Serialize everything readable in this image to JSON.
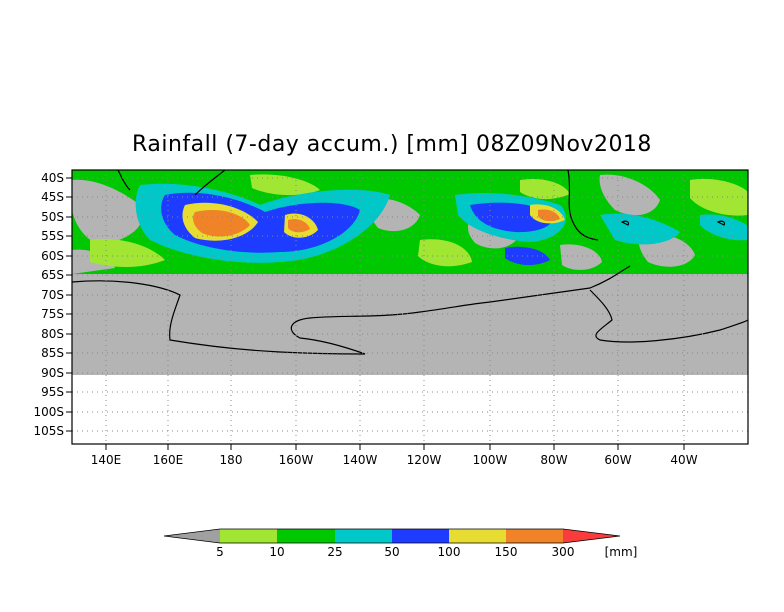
{
  "title": "Rainfall (7-day accum.) [mm] 08Z09Nov2018",
  "map": {
    "lat_labels": [
      "40S",
      "45S",
      "50S",
      "55S",
      "60S",
      "65S",
      "70S",
      "75S",
      "80S",
      "85S",
      "90S",
      "95S",
      "100S",
      "105S"
    ],
    "lon_labels": [
      "140E",
      "160E",
      "180",
      "160W",
      "140W",
      "120W",
      "100W",
      "80W",
      "60W",
      "40W"
    ]
  },
  "colorbar": {
    "unit": "[mm]",
    "thresholds": [
      "5",
      "10",
      "25",
      "50",
      "100",
      "150",
      "300"
    ],
    "colors": [
      "#a0a0a0",
      "#a0e632",
      "#00c800",
      "#00c8c8",
      "#1e3cff",
      "#e6dc32",
      "#f08228",
      "#fa3c3c"
    ]
  },
  "colors": {
    "no_rain": "#b4b4b4",
    "light": "#a0e632",
    "green": "#00c800",
    "cyan": "#00c8c8",
    "blue": "#1e3cff",
    "yellow": "#e6dc32",
    "orange": "#f08228",
    "red": "#fa3c3c"
  }
}
